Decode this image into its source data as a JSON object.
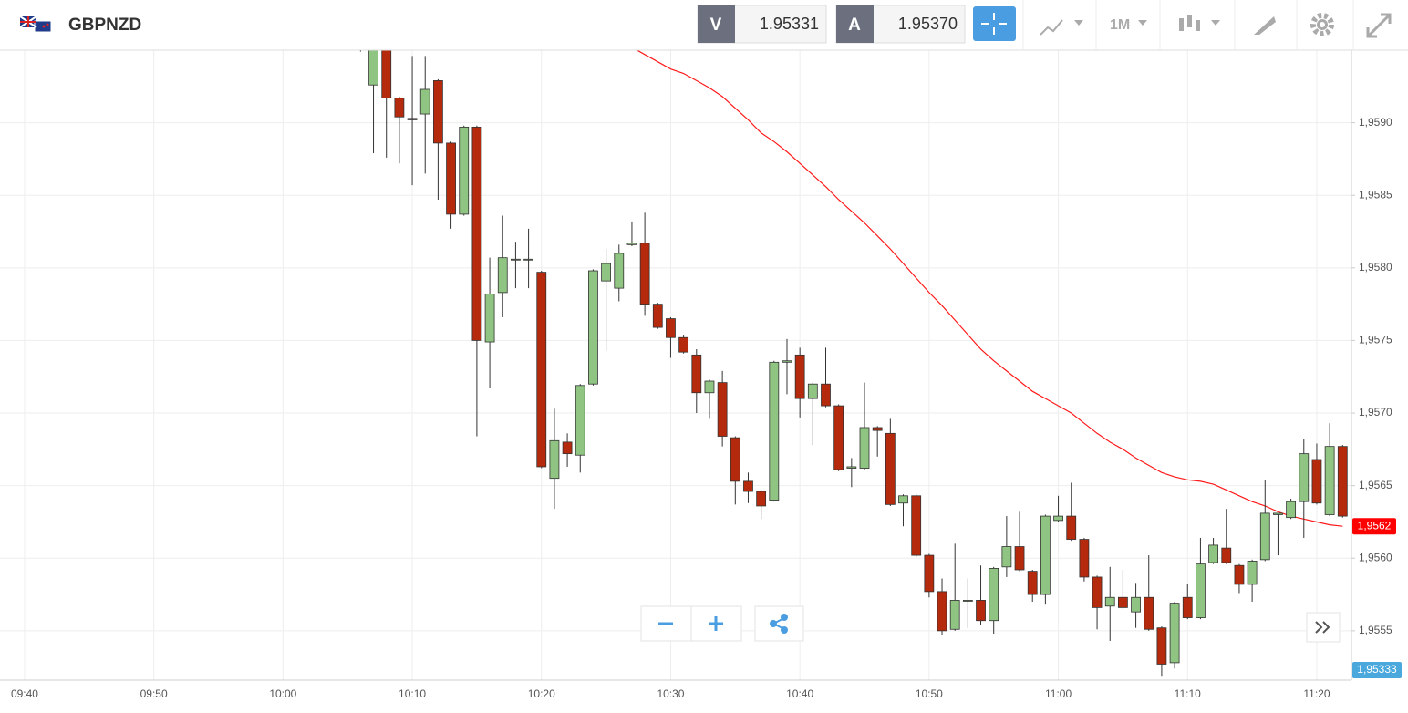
{
  "toolbar": {
    "symbol": "GBPNZD",
    "bid_label": "V",
    "bid": "1.95331",
    "ask_label": "A",
    "ask": "1.95370",
    "timeframe": "1M"
  },
  "chart_data": {
    "type": "candlestick",
    "categories": [
      null,
      "09:40",
      null,
      null,
      null,
      null,
      null,
      null,
      null,
      null,
      null,
      "09:50",
      null,
      null,
      null,
      null,
      null,
      null,
      null,
      null,
      null,
      "10:00",
      null,
      null,
      null,
      null,
      null,
      null,
      null,
      null,
      null,
      "10:10",
      null,
      null,
      null,
      null,
      null,
      null,
      null,
      null,
      null,
      "10:20",
      null,
      null,
      null,
      null,
      null,
      null,
      null,
      null,
      null,
      "10:30",
      null,
      null,
      null,
      null,
      null,
      null,
      null,
      null,
      null,
      "10:40",
      null,
      null,
      null,
      null,
      null,
      null,
      null,
      null,
      null,
      "10:50",
      null,
      null,
      null,
      null,
      null,
      null,
      null,
      null,
      null,
      "11:00",
      null,
      null,
      null,
      null,
      null,
      null,
      null,
      null,
      null,
      "11:10",
      null,
      null,
      null,
      null,
      null,
      null,
      null,
      null,
      null,
      "11:20",
      null,
      null
    ],
    "open": [
      null,
      null,
      null,
      null,
      null,
      null,
      null,
      null,
      null,
      null,
      null,
      null,
      null,
      null,
      null,
      null,
      null,
      null,
      null,
      null,
      null,
      null,
      null,
      null,
      null,
      null,
      null,
      1.95952,
      1.95926,
      1.95955,
      1.95917,
      1.95903,
      1.95906,
      1.95929,
      1.95886,
      1.95837,
      1.95897,
      1.95749,
      1.95783,
      1.95806,
      1.95806,
      1.95797,
      1.95655,
      1.9568,
      1.95671,
      1.9572,
      1.95791,
      1.95786,
      1.95816,
      1.95817,
      1.95775,
      1.95765,
      1.95752,
      1.9574,
      1.95714,
      1.95721,
      1.95683,
      1.95653,
      1.95646,
      1.9564,
      1.95735,
      1.9574,
      1.9571,
      1.9572,
      1.95705,
      1.95662,
      1.95662,
      1.9569,
      1.95686,
      1.95638,
      1.95643,
      1.95602,
      1.95577,
      1.95551,
      1.95571,
      1.95571,
      1.95557,
      1.95594,
      1.95608,
      1.95591,
      1.95575,
      1.95626,
      1.95629,
      1.95613,
      1.95587,
      1.95567,
      1.95573,
      1.95563,
      1.95573,
      1.95552,
      1.95528,
      1.95573,
      1.95559,
      1.95597,
      1.95607,
      1.95595,
      1.95582,
      1.95599,
      1.9563,
      1.95628,
      1.95639,
      1.95668,
      1.9563,
      1.95677
    ],
    "high": [
      null,
      null,
      null,
      null,
      null,
      null,
      null,
      null,
      null,
      null,
      null,
      null,
      null,
      null,
      null,
      null,
      null,
      null,
      null,
      null,
      null,
      null,
      null,
      null,
      null,
      null,
      null,
      1.95955,
      1.95958,
      1.95958,
      1.95918,
      1.95946,
      1.95946,
      1.9593,
      1.95887,
      1.95898,
      1.95898,
      1.95807,
      1.95836,
      1.95818,
      1.95827,
      1.95798,
      1.95703,
      1.95686,
      1.9572,
      1.95799,
      1.95813,
      1.95816,
      1.95832,
      1.95838,
      1.95776,
      1.95766,
      1.95754,
      1.95744,
      1.95723,
      1.95729,
      1.95684,
      1.95659,
      1.95647,
      1.95736,
      1.95751,
      1.95745,
      1.95721,
      1.95745,
      1.95706,
      1.95669,
      1.95721,
      1.95691,
      1.95696,
      1.95644,
      1.95644,
      1.95603,
      1.95586,
      1.9561,
      1.95586,
      1.95595,
      1.95594,
      1.95629,
      1.95632,
      1.95592,
      1.9563,
      1.95643,
      1.95652,
      1.95614,
      1.95588,
      1.95594,
      1.95592,
      1.95583,
      1.95602,
      1.95553,
      1.9557,
      1.95582,
      1.95614,
      1.95614,
      1.95634,
      1.95596,
      1.95599,
      1.95654,
      1.95631,
      1.95641,
      1.95682,
      1.95679,
      1.95693,
      1.95678
    ],
    "low": [
      null,
      null,
      null,
      null,
      null,
      null,
      null,
      null,
      null,
      null,
      null,
      null,
      null,
      null,
      null,
      null,
      null,
      null,
      null,
      null,
      null,
      null,
      null,
      null,
      null,
      null,
      null,
      1.95949,
      1.95879,
      1.95876,
      1.95872,
      1.95857,
      1.95865,
      1.95847,
      1.95827,
      1.95836,
      1.95684,
      1.95717,
      1.95766,
      1.95786,
      1.95786,
      1.95662,
      1.95634,
      1.95663,
      1.95659,
      1.95719,
      1.95743,
      1.95777,
      1.95815,
      1.95767,
      1.95758,
      1.95738,
      1.95741,
      1.957,
      1.95696,
      1.95677,
      1.95637,
      1.95638,
      1.95627,
      1.95639,
      1.95713,
      1.95697,
      1.95678,
      1.95704,
      1.9566,
      1.95649,
      1.95661,
      1.9567,
      1.95636,
      1.95622,
      1.95601,
      1.95573,
      1.95547,
      1.9555,
      1.95552,
      1.95554,
      1.95548,
      1.95587,
      1.95591,
      1.9557,
      1.95568,
      1.95625,
      1.95612,
      1.95584,
      1.95551,
      1.95543,
      1.95565,
      1.95552,
      1.9555,
      1.95519,
      1.95524,
      1.95558,
      1.95558,
      1.95596,
      1.95596,
      1.95576,
      1.9557,
      1.95598,
      1.95602,
      1.95627,
      1.95614,
      1.95637,
      1.95629,
      1.95628
    ],
    "close": [
      null,
      null,
      null,
      null,
      null,
      null,
      null,
      null,
      null,
      null,
      null,
      null,
      null,
      null,
      null,
      null,
      null,
      null,
      null,
      null,
      null,
      null,
      null,
      null,
      null,
      null,
      null,
      1.9595,
      1.95955,
      1.95917,
      1.95904,
      1.95902,
      1.95923,
      1.95886,
      1.95837,
      1.95897,
      1.9575,
      1.95782,
      1.95807,
      1.95806,
      1.95806,
      1.95663,
      1.95681,
      1.95672,
      1.95719,
      1.95798,
      1.95803,
      1.9581,
      1.95817,
      1.95775,
      1.95759,
      1.95752,
      1.95742,
      1.95714,
      1.95722,
      1.95684,
      1.95653,
      1.95646,
      1.95636,
      1.95735,
      1.95736,
      1.9571,
      1.9572,
      1.95705,
      1.95661,
      1.95663,
      1.9569,
      1.95688,
      1.95637,
      1.95643,
      1.95602,
      1.95577,
      1.9555,
      1.95571,
      1.95571,
      1.95557,
      1.95593,
      1.95608,
      1.95592,
      1.95575,
      1.95629,
      1.95629,
      1.95613,
      1.95587,
      1.95566,
      1.95573,
      1.95566,
      1.95573,
      1.95551,
      1.95527,
      1.95569,
      1.95559,
      1.95596,
      1.95609,
      1.95597,
      1.95582,
      1.95598,
      1.95631,
      1.95631,
      1.95639,
      1.95672,
      1.95638,
      1.95677,
      1.95629
    ],
    "up_color": "#8fc482",
    "down_color": "#b52a0c",
    "moving_average": {
      "color": "#ff1a1a",
      "last_label": "1,9562",
      "values": [
        null,
        null,
        null,
        null,
        null,
        null,
        null,
        null,
        null,
        null,
        null,
        null,
        null,
        null,
        null,
        null,
        null,
        null,
        null,
        null,
        null,
        null,
        null,
        null,
        null,
        null,
        null,
        null,
        null,
        null,
        null,
        null,
        null,
        null,
        null,
        null,
        null,
        null,
        null,
        null,
        null,
        null,
        null,
        null,
        null,
        null,
        null,
        null,
        1.95952,
        1.95947,
        1.95942,
        1.95937,
        1.95934,
        1.95929,
        1.95924,
        1.95918,
        1.9591,
        1.95902,
        1.95893,
        1.95887,
        1.9588,
        1.95872,
        1.95864,
        1.95856,
        1.95847,
        1.95839,
        1.95831,
        1.95822,
        1.95813,
        1.95803,
        1.95793,
        1.95783,
        1.95774,
        1.95764,
        1.95754,
        1.95744,
        1.95736,
        1.95729,
        1.95722,
        1.95715,
        1.9571,
        1.95705,
        1.957,
        1.95693,
        1.95686,
        1.9568,
        1.95675,
        1.95669,
        1.95664,
        1.95659,
        1.95656,
        1.95654,
        1.95653,
        1.95651,
        1.95647,
        1.95643,
        1.95639,
        1.95636,
        1.95632,
        1.95629,
        1.95627,
        1.95625,
        1.95623,
        1.95622
      ]
    },
    "price_label": {
      "value": 1.95333,
      "label": "1,95333"
    },
    "ylim": [
      1.95516,
      1.9595
    ],
    "yticks": [
      {
        "value": 1.9555,
        "label": "1,9555"
      },
      {
        "value": 1.956,
        "label": "1,9560"
      },
      {
        "value": 1.9565,
        "label": "1,9565"
      },
      {
        "value": 1.957,
        "label": "1,9570"
      },
      {
        "value": 1.9575,
        "label": "1,9575"
      },
      {
        "value": 1.958,
        "label": "1,9580"
      },
      {
        "value": 1.9585,
        "label": "1,9585"
      },
      {
        "value": 1.959,
        "label": "1,9590"
      }
    ],
    "grid": true
  }
}
